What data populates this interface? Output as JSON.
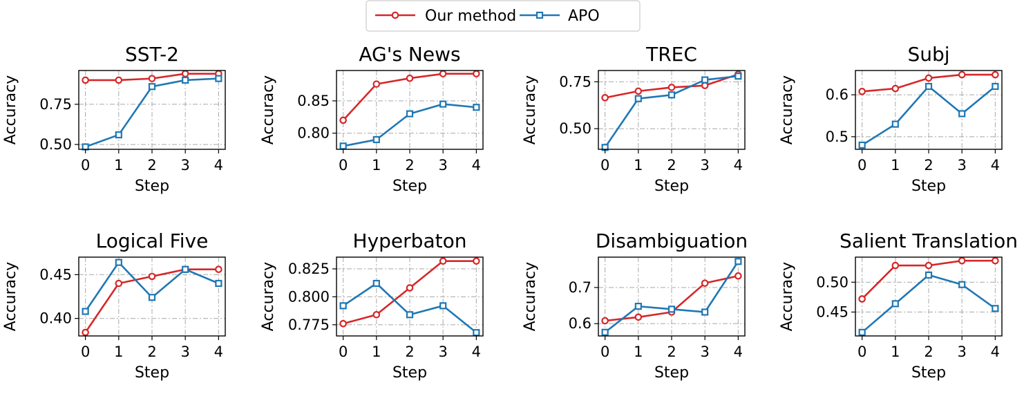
{
  "legend": {
    "entries": [
      {
        "label": "Our method",
        "color": "#d62728",
        "marker": "circle"
      },
      {
        "label": "APO",
        "color": "#1f77b4",
        "marker": "square"
      }
    ],
    "placement": "top-center"
  },
  "chart_data": [
    {
      "type": "line",
      "title": "SST-2",
      "xlabel": "Step",
      "ylabel": "Accuracy",
      "x": [
        0,
        1,
        2,
        3,
        4
      ],
      "xticks": [
        "0",
        "1",
        "2",
        "3",
        "4"
      ],
      "ylim": [
        0.47,
        0.96
      ],
      "yticks": [
        0.5,
        0.75
      ],
      "ytick_labels": [
        "0.50",
        "0.75"
      ],
      "grid": true,
      "series": [
        {
          "name": "Our method",
          "values": [
            0.9,
            0.9,
            0.91,
            0.94,
            0.94
          ]
        },
        {
          "name": "APO",
          "values": [
            0.485,
            0.56,
            0.86,
            0.9,
            0.91
          ]
        }
      ]
    },
    {
      "type": "line",
      "title": "AG's News",
      "xlabel": "Step",
      "ylabel": "Accuracy",
      "x": [
        0,
        1,
        2,
        3,
        4
      ],
      "xticks": [
        "0",
        "1",
        "2",
        "3",
        "4"
      ],
      "ylim": [
        0.775,
        0.897
      ],
      "yticks": [
        0.8,
        0.85
      ],
      "ytick_labels": [
        "0.80",
        "0.85"
      ],
      "grid": true,
      "series": [
        {
          "name": "Our method",
          "values": [
            0.82,
            0.876,
            0.885,
            0.892,
            0.892
          ]
        },
        {
          "name": "APO",
          "values": [
            0.78,
            0.79,
            0.83,
            0.845,
            0.84
          ]
        }
      ]
    },
    {
      "type": "line",
      "title": "TREC",
      "xlabel": "Step",
      "ylabel": "Accuracy",
      "x": [
        0,
        1,
        2,
        3,
        4
      ],
      "xticks": [
        "0",
        "1",
        "2",
        "3",
        "4"
      ],
      "ylim": [
        0.39,
        0.81
      ],
      "yticks": [
        0.5,
        0.75
      ],
      "ytick_labels": [
        "0.50",
        "0.75"
      ],
      "grid": true,
      "series": [
        {
          "name": "Our method",
          "values": [
            0.665,
            0.7,
            0.72,
            0.73,
            0.79
          ]
        },
        {
          "name": "APO",
          "values": [
            0.4,
            0.66,
            0.68,
            0.76,
            0.78
          ]
        }
      ]
    },
    {
      "type": "line",
      "title": "Subj",
      "xlabel": "Step",
      "ylabel": "Accuracy",
      "x": [
        0,
        1,
        2,
        3,
        4
      ],
      "xticks": [
        "0",
        "1",
        "2",
        "3",
        "4"
      ],
      "ylim": [
        0.47,
        0.658
      ],
      "yticks": [
        0.5,
        0.6
      ],
      "ytick_labels": [
        "0.5",
        "0.6"
      ],
      "grid": true,
      "series": [
        {
          "name": "Our method",
          "values": [
            0.608,
            0.615,
            0.64,
            0.648,
            0.648
          ]
        },
        {
          "name": "APO",
          "values": [
            0.48,
            0.53,
            0.62,
            0.555,
            0.62
          ]
        }
      ]
    },
    {
      "type": "line",
      "title": "Logical Five",
      "xlabel": "Step",
      "ylabel": "Accuracy",
      "x": [
        0,
        1,
        2,
        3,
        4
      ],
      "xticks": [
        "0",
        "1",
        "2",
        "3",
        "4"
      ],
      "ylim": [
        0.38,
        0.47
      ],
      "yticks": [
        0.4,
        0.45
      ],
      "ytick_labels": [
        "0.40",
        "0.45"
      ],
      "grid": true,
      "series": [
        {
          "name": "Our method",
          "values": [
            0.384,
            0.44,
            0.448,
            0.456,
            0.456
          ]
        },
        {
          "name": "APO",
          "values": [
            0.408,
            0.464,
            0.424,
            0.456,
            0.44
          ]
        }
      ]
    },
    {
      "type": "line",
      "title": "Hyperbaton",
      "xlabel": "Step",
      "ylabel": "Accuracy",
      "x": [
        0,
        1,
        2,
        3,
        4
      ],
      "xticks": [
        "0",
        "1",
        "2",
        "3",
        "4"
      ],
      "ylim": [
        0.765,
        0.8355
      ],
      "yticks": [
        0.775,
        0.8,
        0.825
      ],
      "ytick_labels": [
        "0.775",
        "0.800",
        "0.825"
      ],
      "grid": true,
      "series": [
        {
          "name": "Our method",
          "values": [
            0.776,
            0.784,
            0.808,
            0.832,
            0.832
          ]
        },
        {
          "name": "APO",
          "values": [
            0.792,
            0.812,
            0.784,
            0.792,
            0.768
          ]
        }
      ]
    },
    {
      "type": "line",
      "title": "Disambiguation",
      "xlabel": "Step",
      "ylabel": "Accuracy",
      "x": [
        0,
        1,
        2,
        3,
        4
      ],
      "xticks": [
        "0",
        "1",
        "2",
        "3",
        "4"
      ],
      "ylim": [
        0.566,
        0.784
      ],
      "yticks": [
        0.6,
        0.7
      ],
      "ytick_labels": [
        "0.6",
        "0.7"
      ],
      "grid": true,
      "series": [
        {
          "name": "Our method",
          "values": [
            0.608,
            0.618,
            0.632,
            0.712,
            0.732
          ]
        },
        {
          "name": "APO",
          "values": [
            0.576,
            0.648,
            0.64,
            0.632,
            0.772
          ]
        }
      ]
    },
    {
      "type": "line",
      "title": "Salient Translation",
      "xlabel": "Step",
      "ylabel": "Accuracy",
      "x": [
        0,
        1,
        2,
        3,
        4
      ],
      "xticks": [
        "0",
        "1",
        "2",
        "3",
        "4"
      ],
      "ylim": [
        0.41,
        0.542
      ],
      "yticks": [
        0.45,
        0.5
      ],
      "ytick_labels": [
        "0.45",
        "0.50"
      ],
      "grid": true,
      "series": [
        {
          "name": "Our method",
          "values": [
            0.472,
            0.528,
            0.528,
            0.536,
            0.536
          ]
        },
        {
          "name": "APO",
          "values": [
            0.416,
            0.464,
            0.512,
            0.496,
            0.456
          ]
        }
      ]
    }
  ]
}
